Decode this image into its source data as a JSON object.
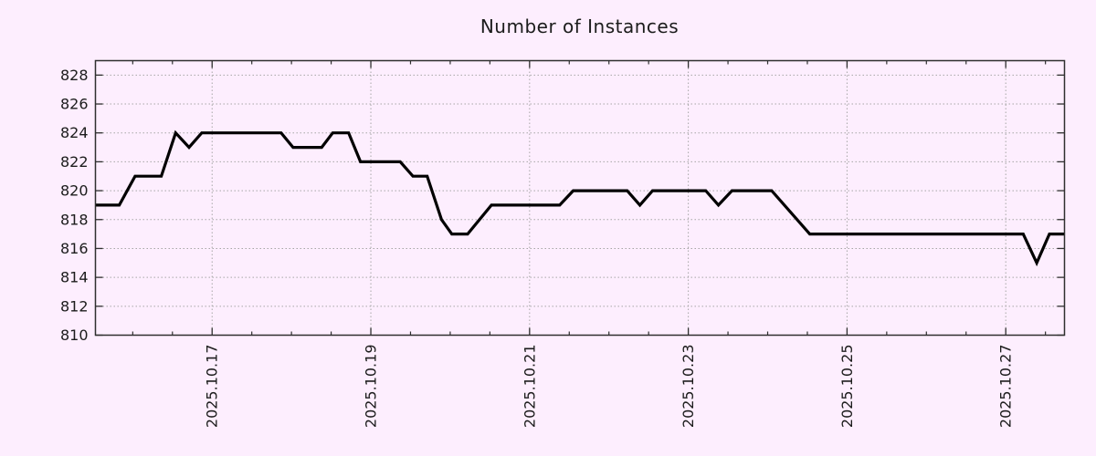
{
  "title": "Number of Instances",
  "colors": {
    "background": "#fdeefe",
    "line": "#000000",
    "grid": "#a6a6a6",
    "axis": "#2f2f2f",
    "text": "#1c1c1c"
  },
  "chart_data": {
    "type": "line",
    "title": "Number of Instances",
    "xlabel": "",
    "ylabel": "",
    "legend": "none",
    "grid": true,
    "x_unit": "day of month, October 2025",
    "xlim": [
      15.53,
      27.74
    ],
    "ylim": [
      810,
      829
    ],
    "y_ticks": [
      810,
      812,
      814,
      816,
      818,
      820,
      822,
      824,
      826,
      828
    ],
    "x_ticks": [
      {
        "value": 17,
        "label": "2025.10.17"
      },
      {
        "value": 19,
        "label": "2025.10.19"
      },
      {
        "value": 21,
        "label": "2025.10.21"
      },
      {
        "value": 23,
        "label": "2025.10.23"
      },
      {
        "value": 25,
        "label": "2025.10.25"
      },
      {
        "value": 27,
        "label": "2025.10.27"
      }
    ],
    "x_minor_step": 0.5,
    "series": [
      {
        "name": "instances",
        "color": "#000000",
        "points": [
          [
            15.53,
            819
          ],
          [
            15.83,
            819
          ],
          [
            16.03,
            821
          ],
          [
            16.36,
            821
          ],
          [
            16.54,
            824
          ],
          [
            16.71,
            823
          ],
          [
            16.87,
            824
          ],
          [
            17.87,
            824
          ],
          [
            18.02,
            823
          ],
          [
            18.38,
            823
          ],
          [
            18.52,
            824
          ],
          [
            18.72,
            824
          ],
          [
            18.87,
            822
          ],
          [
            19.37,
            822
          ],
          [
            19.53,
            821
          ],
          [
            19.71,
            821
          ],
          [
            19.89,
            818
          ],
          [
            20.02,
            817
          ],
          [
            20.22,
            817
          ],
          [
            20.52,
            819
          ],
          [
            21.38,
            819
          ],
          [
            21.55,
            820
          ],
          [
            22.23,
            820
          ],
          [
            22.39,
            819
          ],
          [
            22.55,
            820
          ],
          [
            23.22,
            820
          ],
          [
            23.38,
            819
          ],
          [
            23.55,
            820
          ],
          [
            24.05,
            820
          ],
          [
            24.53,
            817
          ],
          [
            27.22,
            817
          ],
          [
            27.39,
            815
          ],
          [
            27.55,
            817
          ],
          [
            27.74,
            817
          ]
        ]
      }
    ]
  }
}
